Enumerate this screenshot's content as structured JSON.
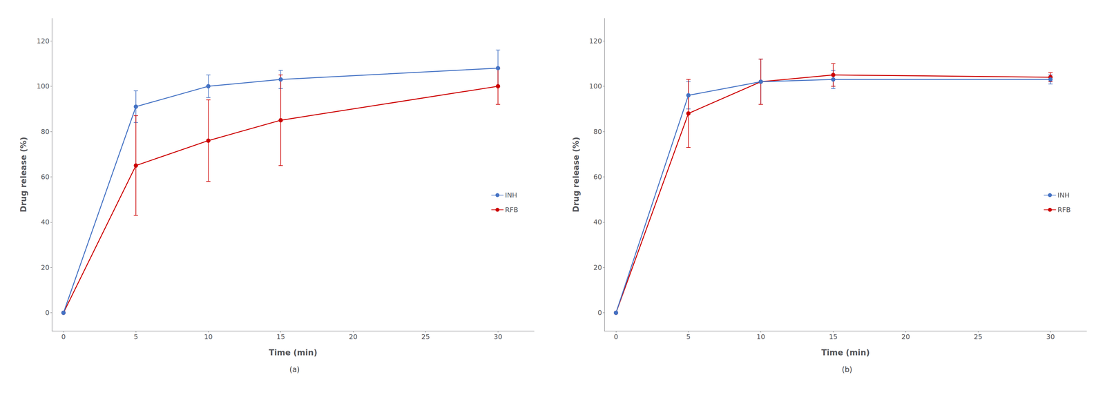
{
  "chart_data": [
    {
      "type": "line",
      "title": "(a)",
      "xlabel": "Time (min)",
      "ylabel": "Drug release (%)",
      "x": [
        0,
        5,
        10,
        15,
        30
      ],
      "series": [
        {
          "name": "INH",
          "color": "#4472C4",
          "marker": "circle",
          "line_style": "solid",
          "values": [
            0,
            91,
            100,
            103,
            108
          ],
          "yerr": [
            0,
            7,
            5,
            4,
            8
          ]
        },
        {
          "name": "RFB",
          "color": "#CC0000",
          "marker": "circle",
          "line_style": "solid",
          "values": [
            0,
            65,
            76,
            85,
            100
          ],
          "yerr": [
            0,
            22,
            18,
            20,
            8
          ]
        }
      ],
      "xlim": [
        -0.8,
        32.5
      ],
      "xticks": [
        0,
        5,
        10,
        15,
        20,
        25,
        30
      ],
      "ylim": [
        -8,
        130
      ],
      "yticks": [
        0,
        20,
        40,
        60,
        80,
        100,
        120
      ],
      "legend": "right",
      "grid": false
    },
    {
      "type": "line",
      "title": "(b)",
      "xlabel": "Time (min)",
      "ylabel": "Drug release (%)",
      "x": [
        0,
        5,
        10,
        15,
        30
      ],
      "series": [
        {
          "name": "INH",
          "color": "#4472C4",
          "marker": "circle",
          "line_style": "solid",
          "values": [
            0,
            96,
            102,
            103,
            103
          ],
          "yerr": [
            0,
            6,
            10,
            4,
            2
          ]
        },
        {
          "name": "RFB",
          "color": "#CC0000",
          "marker": "circle",
          "line_style": "solid",
          "values": [
            0,
            88,
            102,
            105,
            104
          ],
          "yerr": [
            0,
            15,
            10,
            5,
            2
          ]
        }
      ],
      "xlim": [
        -0.8,
        32.5
      ],
      "xticks": [
        0,
        5,
        10,
        15,
        20,
        25,
        30
      ],
      "ylim": [
        -8,
        130
      ],
      "yticks": [
        0,
        20,
        40,
        60,
        80,
        100,
        120
      ],
      "legend": "right",
      "grid": false
    }
  ]
}
